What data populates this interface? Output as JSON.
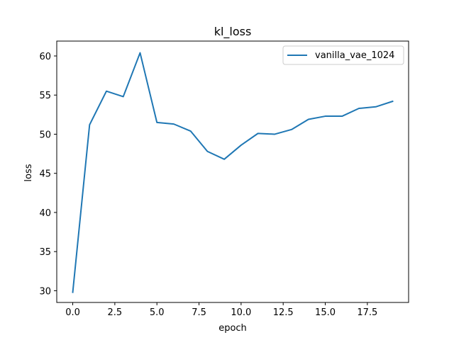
{
  "chart_data": {
    "type": "line",
    "title": "kl_loss",
    "xlabel": "epoch",
    "ylabel": "loss",
    "xlim": [
      -0.95,
      19.95
    ],
    "ylim": [
      28.5,
      61.9
    ],
    "xticks": [
      0.0,
      2.5,
      5.0,
      7.5,
      10.0,
      12.5,
      15.0,
      17.5
    ],
    "xtick_labels": [
      "0.0",
      "2.5",
      "5.0",
      "7.5",
      "10.0",
      "12.5",
      "15.0",
      "17.5"
    ],
    "yticks": [
      30,
      35,
      40,
      45,
      50,
      55,
      60
    ],
    "ytick_labels": [
      "30",
      "35",
      "40",
      "45",
      "50",
      "55",
      "60"
    ],
    "grid": false,
    "legend_position": "top-right",
    "series": [
      {
        "name": "vanilla_vae_1024",
        "color": "#1f77b4",
        "x": [
          0,
          1,
          2,
          3,
          4,
          5,
          6,
          7,
          8,
          9,
          10,
          11,
          12,
          13,
          14,
          15,
          16,
          17,
          18,
          19
        ],
        "y": [
          29.8,
          51.2,
          55.5,
          54.8,
          60.4,
          51.5,
          51.3,
          50.4,
          47.8,
          46.8,
          48.6,
          50.1,
          50.0,
          50.6,
          51.9,
          52.3,
          52.3,
          53.3,
          53.5,
          54.2
        ]
      }
    ]
  }
}
